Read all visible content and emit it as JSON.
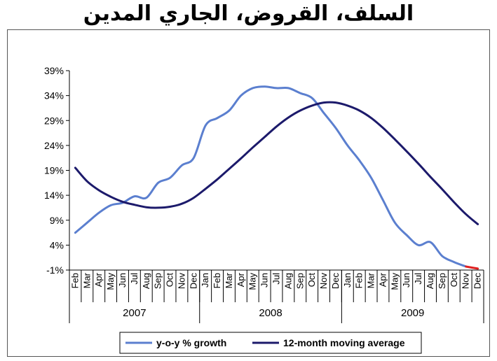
{
  "title": "السلف، القروض، الجاري المدين",
  "chart_data": {
    "type": "line",
    "title": "السلف، القروض، الجاري المدين",
    "xlabel": "",
    "ylabel": "",
    "ylim": [
      -1,
      39
    ],
    "yticks": [
      "-1%",
      "4%",
      "9%",
      "14%",
      "19%",
      "24%",
      "29%",
      "34%",
      "39%"
    ],
    "grid": false,
    "legend_position": "bottom",
    "months": [
      "Feb",
      "Mar",
      "Apr",
      "May",
      "Jun",
      "Jul",
      "Aug",
      "Sep",
      "Oct",
      "Nov",
      "Dec",
      "Jan",
      "Feb",
      "Mar",
      "Apr",
      "May",
      "Jun",
      "Jul",
      "Aug",
      "Sep",
      "Oct",
      "Nov",
      "Dec",
      "Jan",
      "Feb",
      "Mar",
      "Apr",
      "May",
      "Jun",
      "Jul",
      "Aug",
      "Sep",
      "Oct",
      "Nov",
      "Dec"
    ],
    "years": [
      {
        "label": "2007",
        "start": 0,
        "end": 10
      },
      {
        "label": "2008",
        "start": 11,
        "end": 22
      },
      {
        "label": "2009",
        "start": 23,
        "end": 34
      }
    ],
    "series": [
      {
        "name": "y-o-y % growth",
        "color": "#5b7fcf",
        "values": [
          6.5,
          8.5,
          10.5,
          12.0,
          12.5,
          13.8,
          13.5,
          16.5,
          17.5,
          20.0,
          21.5,
          28.0,
          29.5,
          31.0,
          34.0,
          35.5,
          35.8,
          35.5,
          35.5,
          34.5,
          33.5,
          30.5,
          27.5,
          24.0,
          21.0,
          17.5,
          13.0,
          8.5,
          6.0,
          4.0,
          4.6,
          1.8,
          0.6,
          -0.3,
          -0.7
        ],
        "highlight_tail": {
          "from_index": 33,
          "color": "#e02020"
        }
      },
      {
        "name": "12-month moving average",
        "color": "#1c1a6b",
        "values": [
          19.5,
          16.8,
          15.0,
          13.7,
          12.7,
          12.1,
          11.6,
          11.5,
          11.7,
          12.3,
          13.5,
          15.3,
          17.2,
          19.3,
          21.4,
          23.6,
          25.7,
          27.8,
          29.6,
          31.0,
          32.0,
          32.6,
          32.6,
          32.0,
          31.0,
          29.5,
          27.5,
          25.2,
          22.8,
          20.3,
          17.7,
          15.2,
          12.6,
          10.2,
          8.2
        ]
      }
    ]
  }
}
